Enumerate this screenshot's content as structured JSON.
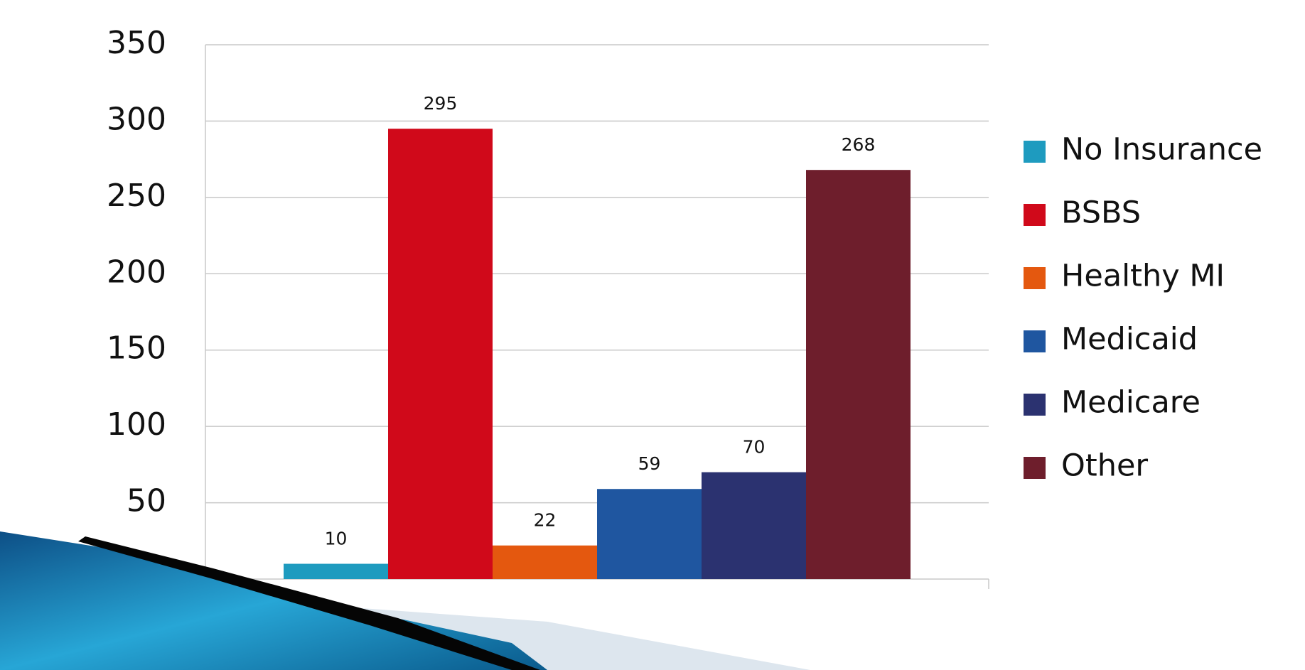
{
  "chart_data": {
    "type": "bar",
    "categories": [
      null
    ],
    "series": [
      {
        "name": "No Insurance",
        "color": "#1e9bbf",
        "values": [
          10
        ]
      },
      {
        "name": "BSBS",
        "color": "#d0091a",
        "values": [
          295
        ]
      },
      {
        "name": "Healthy MI",
        "color": "#e4580f",
        "values": [
          22
        ]
      },
      {
        "name": "Medicaid",
        "color": "#1f56a0",
        "values": [
          59
        ]
      },
      {
        "name": "Medicare",
        "color": "#2b3270",
        "values": [
          70
        ]
      },
      {
        "name": "Other",
        "color": "#6e1e2c",
        "values": [
          268
        ]
      }
    ],
    "ylim": [
      0,
      350
    ],
    "yticks": [
      0,
      50,
      100,
      150,
      200,
      250,
      300,
      350
    ],
    "grid": true,
    "legend": "right"
  }
}
